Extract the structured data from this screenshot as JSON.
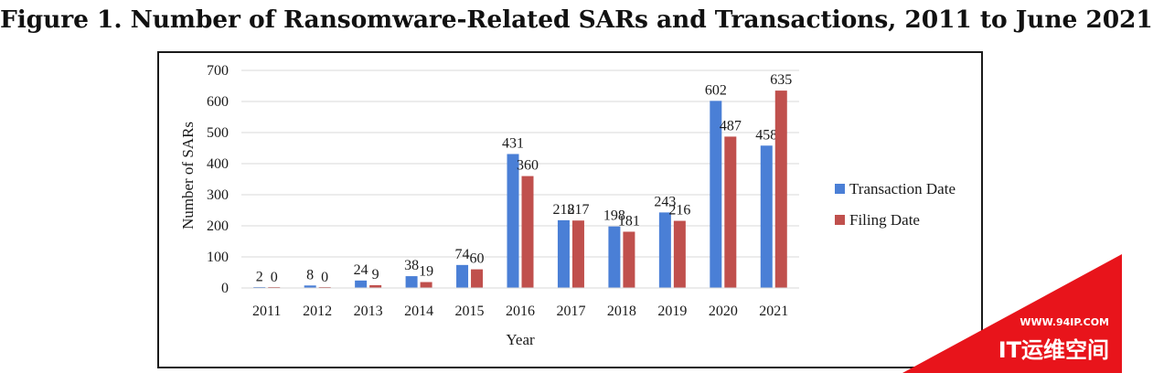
{
  "figure": {
    "title": "Figure 1. Number of Ransomware-Related SARs and Transactions, 2011 to June 2021"
  },
  "watermark": {
    "url_text": "WWW.94IP.COM",
    "brand_text": "IT运维空间",
    "color": "#e8141b"
  },
  "chart_data": {
    "type": "bar",
    "title": "",
    "xlabel": "Year",
    "ylabel": "Number of SARs",
    "ylim": [
      0,
      700
    ],
    "yticks": [
      0,
      100,
      200,
      300,
      400,
      500,
      600,
      700
    ],
    "grid": true,
    "legend_position": "right",
    "categories": [
      "2011",
      "2012",
      "2013",
      "2014",
      "2015",
      "2016",
      "2017",
      "2018",
      "2019",
      "2020",
      "2021"
    ],
    "series": [
      {
        "name": "Transaction Date",
        "color": "#4a7fd6",
        "values": [
          2,
          8,
          24,
          38,
          74,
          431,
          218,
          198,
          243,
          602,
          458
        ]
      },
      {
        "name": "Filing Date",
        "color": "#c0504d",
        "values": [
          0,
          0,
          9,
          19,
          60,
          360,
          217,
          181,
          216,
          487,
          635
        ]
      }
    ]
  }
}
